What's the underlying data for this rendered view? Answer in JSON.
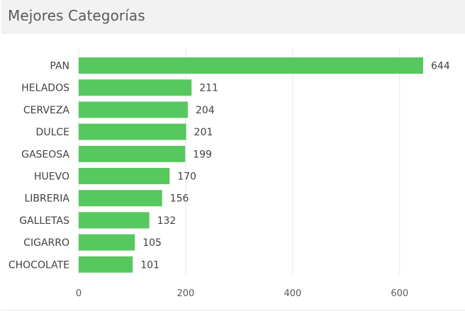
{
  "panel": {
    "title": "Mejores Categorías"
  },
  "colors": {
    "bar": "#57c75f",
    "grid": "#e6e6e6",
    "label": "#404040",
    "tick": "#595959",
    "header_bg": "#f2f2f2"
  },
  "chart_data": {
    "type": "bar",
    "orientation": "horizontal",
    "categories": [
      "PAN",
      "HELADOS",
      "CERVEZA",
      "DULCE",
      "GASEOSA",
      "HUEVO",
      "LIBRERIA",
      "GALLETAS",
      "CIGARRO",
      "CHOCOLATE"
    ],
    "values": [
      644,
      211,
      204,
      201,
      199,
      170,
      156,
      132,
      105,
      101
    ],
    "xlim": [
      0,
      644
    ],
    "x_ticks": [
      0,
      200,
      400,
      600
    ],
    "grid": true,
    "legend": "none",
    "data_labels": true
  }
}
